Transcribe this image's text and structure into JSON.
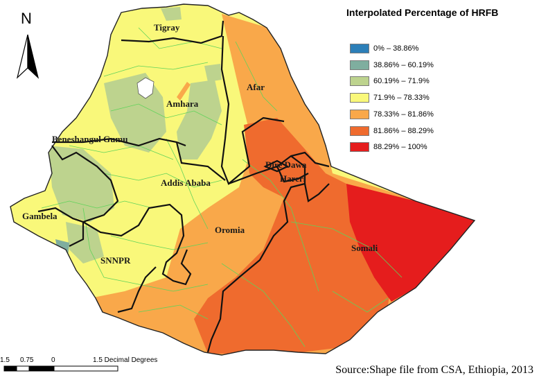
{
  "legend": {
    "title": "Interpolated Percentage of HRFB",
    "items": [
      {
        "label": "0% – 38.86%",
        "color": "#2c7fb8"
      },
      {
        "label": "38.86% – 60.19%",
        "color": "#7fae9f"
      },
      {
        "label": "60.19% – 71.9%",
        "color": "#bdd38e"
      },
      {
        "label": "71.9% – 78.33%",
        "color": "#f9f87a"
      },
      {
        "label": "78.33% – 81.86%",
        "color": "#f9a84a"
      },
      {
        "label": "81.86% – 88.29%",
        "color": "#ef6b2e"
      },
      {
        "label": "88.29% – 100%",
        "color": "#e51d1d"
      }
    ]
  },
  "north": {
    "label": "N"
  },
  "regions": [
    "Tigray",
    "Afar",
    "Amhara",
    "Beneshangul Gumu",
    "Dire Dawa",
    "Addis Ababa",
    "Hareri",
    "Gambela",
    "Oromia",
    "Somali",
    "SNNPR"
  ],
  "scale_bar": {
    "ticks": [
      "1.5",
      "0.75",
      "0",
      "1.5 Decimal Degrees"
    ]
  },
  "source": "Source:Shape file from CSA, Ethiopia, 2013"
}
